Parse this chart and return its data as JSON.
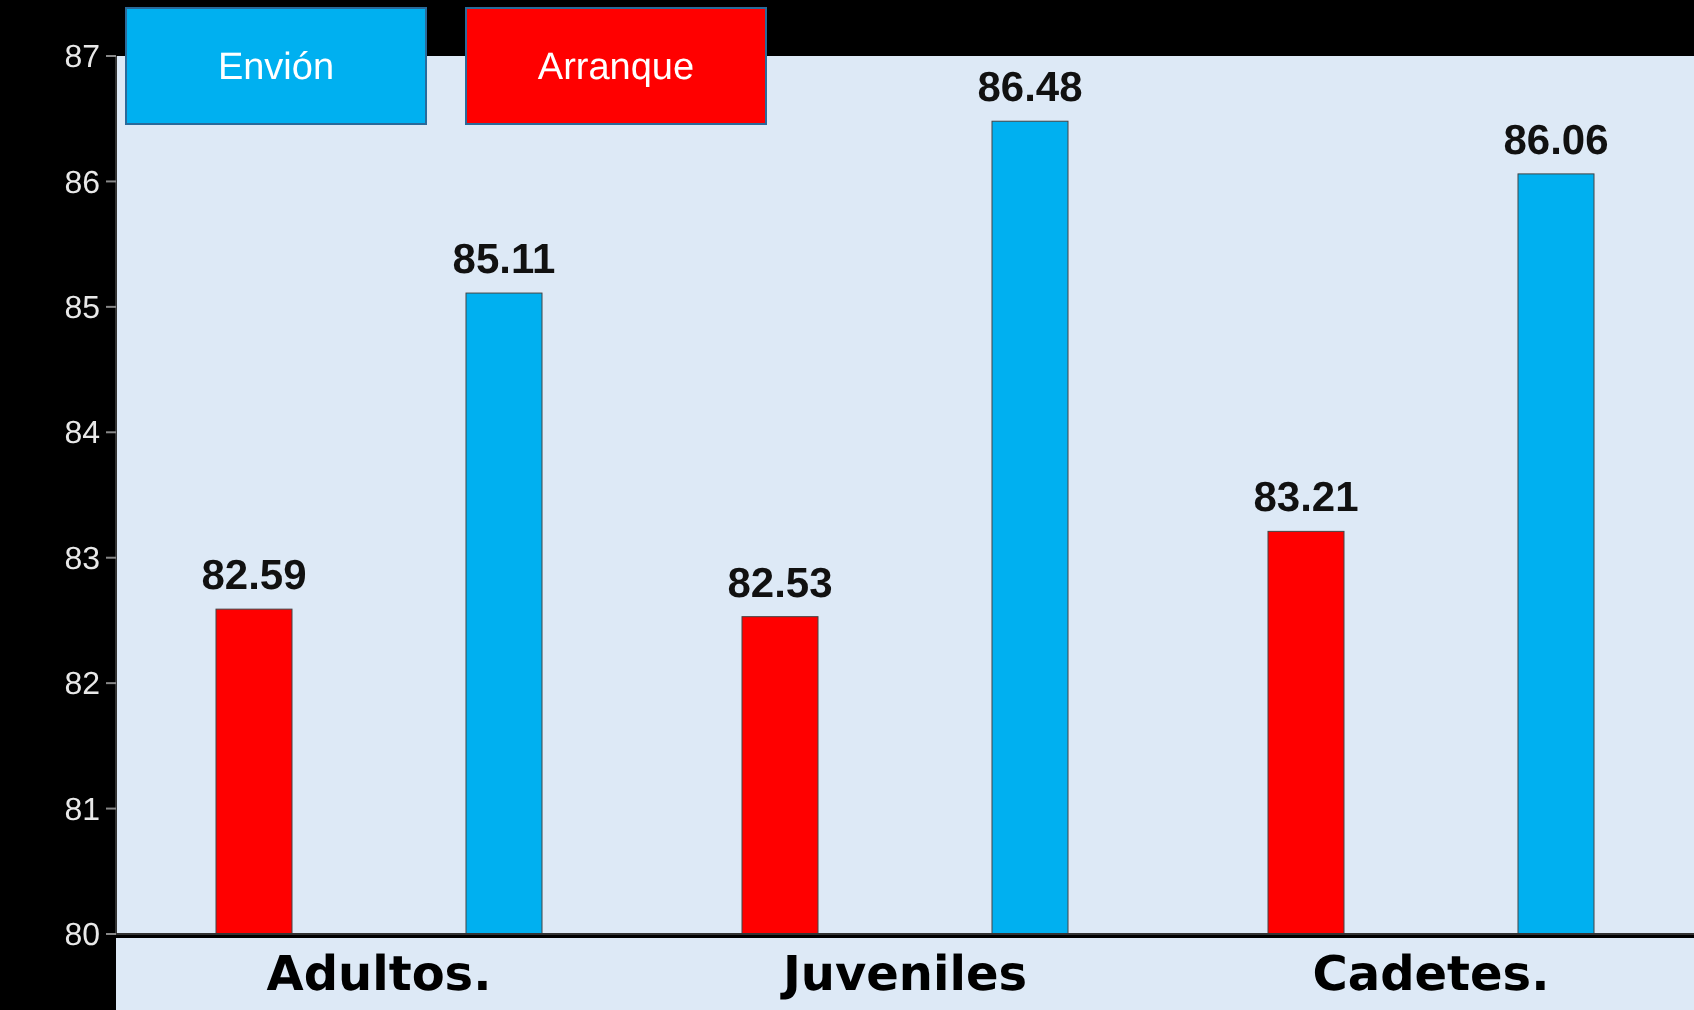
{
  "chart_data": {
    "type": "bar",
    "categories": [
      "Adultos.",
      "Juveniles",
      "Cadetes."
    ],
    "series": [
      {
        "name": "Arranque",
        "color": "#ff0000",
        "values": [
          82.59,
          82.53,
          83.21
        ]
      },
      {
        "name": "Envión",
        "color": "#00b0f0",
        "values": [
          85.11,
          86.48,
          86.06
        ]
      }
    ],
    "ylim": [
      80,
      87
    ],
    "yticks": [
      80,
      81,
      82,
      83,
      84,
      85,
      86,
      87
    ],
    "data_labels": true,
    "legend": "top left",
    "grid": false
  }
}
